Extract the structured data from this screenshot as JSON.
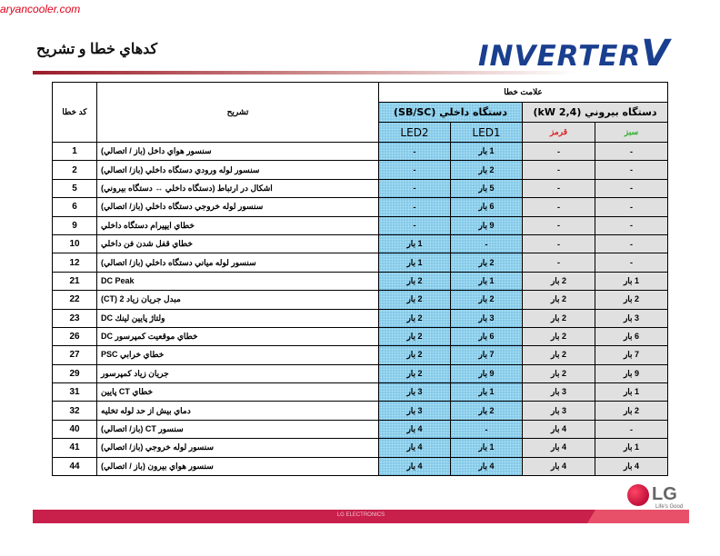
{
  "watermark": "aryancooler.com",
  "title": "كدهاي خطا و تشريح",
  "brand": {
    "text": "INVERTER",
    "v": "V"
  },
  "table": {
    "h_code": "كد خطا",
    "h_desc": "تشريح",
    "h_signal": "علامت خطا",
    "h_indoor": "دستگاه داخلي (SB/SC)",
    "h_outdoor": "دستگاه بيروني (2,4 kW)",
    "h_led2": "LED2",
    "h_led1": "LED1",
    "h_red": "قرمز",
    "h_green": "سبز",
    "rows": [
      {
        "code": "1",
        "desc": "سنسور هواي داخل (باز / اتصالي)",
        "cells": [
          "-",
          "1 بار",
          "-",
          "-"
        ]
      },
      {
        "code": "2",
        "desc": "سنسور لوله ورودي دستگاه داخلي (باز/ اتصالي)",
        "cells": [
          "-",
          "2 بار",
          "-",
          "-"
        ]
      },
      {
        "code": "5",
        "desc": "اشكال در ارتباط (دستگاه داخلي ↔ دستگاه بيروني)",
        "cells": [
          "-",
          "5 بار",
          "-",
          "-"
        ]
      },
      {
        "code": "6",
        "desc": "سنسور لوله خروجي دستگاه داخلي (باز/ اتصالي)",
        "cells": [
          "-",
          "6 بار",
          "-",
          "-"
        ]
      },
      {
        "code": "9",
        "desc": "خطاي ايپيرام دستگاه داخلي",
        "cells": [
          "-",
          "9 بار",
          "-",
          "-"
        ]
      },
      {
        "code": "10",
        "desc": "خطاي قفل شدن فن داخلي",
        "cells": [
          "1 بار",
          "-",
          "-",
          "-"
        ]
      },
      {
        "code": "12",
        "desc": "سنسور لوله مياني دستگاه داخلي (باز/ اتصالي)",
        "cells": [
          "1 بار",
          "2 بار",
          "-",
          "-"
        ]
      },
      {
        "code": "21",
        "desc": "DC Peak",
        "cells": [
          "2 بار",
          "1 بار",
          "2 بار",
          "1 بار"
        ]
      },
      {
        "code": "22",
        "desc": "مبدل جريان زياد 2 (CT)",
        "cells": [
          "2 بار",
          "2 بار",
          "2 بار",
          "2 بار"
        ]
      },
      {
        "code": "23",
        "desc": "ولتاژ پايين لينك DC",
        "cells": [
          "2 بار",
          "3 بار",
          "2 بار",
          "3 بار"
        ]
      },
      {
        "code": "26",
        "desc": "خطاي موقعيت كمپرسور DC",
        "cells": [
          "2 بار",
          "6 بار",
          "2 بار",
          "6 بار"
        ]
      },
      {
        "code": "27",
        "desc": "خطاي خرابي PSC",
        "cells": [
          "2 بار",
          "7 بار",
          "2 بار",
          "7 بار"
        ]
      },
      {
        "code": "29",
        "desc": "جريان زياد كمپرسور",
        "cells": [
          "2 بار",
          "9 بار",
          "2 بار",
          "9 بار"
        ]
      },
      {
        "code": "31",
        "desc": "خطاي CT پايين",
        "cells": [
          "3 بار",
          "1 بار",
          "3 بار",
          "1 بار"
        ]
      },
      {
        "code": "32",
        "desc": "دماي بيش از حد لوله تخليه",
        "cells": [
          "3 بار",
          "2 بار",
          "3 بار",
          "2 بار"
        ]
      },
      {
        "code": "40",
        "desc": "سنسور CT (باز/ اتصالي)",
        "cells": [
          "4 بار",
          "-",
          "4 بار",
          "-"
        ]
      },
      {
        "code": "41",
        "desc": "سنسور لوله خروجي (باز/ اتصالي)",
        "cells": [
          "4 بار",
          "1 بار",
          "4 بار",
          "1 بار"
        ]
      },
      {
        "code": "44",
        "desc": "سنسور هواي بيرون (باز / اتصالي)",
        "cells": [
          "4 بار",
          "4 بار",
          "4 بار",
          "4 بار"
        ]
      }
    ]
  },
  "colors": {
    "red_label": "#e02020",
    "green_label": "#30b030",
    "indoor_bg": "#a9e4f6",
    "outdoor_bg": "#e0e0e0",
    "footer": "#c81f4b"
  },
  "footer": {
    "text": "LG ELECTRONICS"
  },
  "logo": {
    "text": "LG",
    "slogan": "Life's Good"
  }
}
